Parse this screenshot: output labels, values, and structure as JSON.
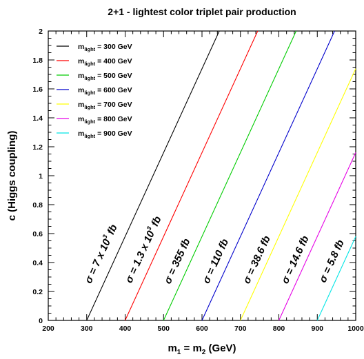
{
  "chart_data": {
    "type": "line",
    "title": "2+1 - lightest color triplet pair production",
    "xlabel": {
      "main": "m",
      "sub1": "1",
      "mid": " = m",
      "sub2": "2",
      "tail": " (GeV)"
    },
    "ylabel": "c (Higgs coupling)",
    "xlim": [
      200,
      1000
    ],
    "ylim": [
      0,
      2
    ],
    "x_major_ticks": [
      200,
      300,
      400,
      500,
      600,
      700,
      800,
      900,
      1000
    ],
    "y_major_ticks": [
      0,
      0.2,
      0.4,
      0.6,
      0.8,
      1,
      1.2,
      1.4,
      1.6,
      1.8,
      2
    ],
    "x_tick_labels": [
      "200",
      "300",
      "400",
      "500",
      "600",
      "700",
      "800",
      "900",
      "1000"
    ],
    "y_tick_labels": [
      "0",
      "0.2",
      "0.4",
      "0.6",
      "0.8",
      "1",
      "1.2",
      "1.4",
      "1.6",
      "1.8",
      "2"
    ],
    "grid": false,
    "legend_position": "top-left",
    "series": [
      {
        "legend_prefix": "m",
        "legend_sub": "light",
        "legend_suffix": " = 300 GeV",
        "color": "#000000",
        "x": [
          300,
          645
        ],
        "y": [
          0,
          2
        ],
        "annotation": {
          "pre": "σ = 7 x 10",
          "sup": "3",
          "post": " fb",
          "at": [
            345,
            0.45
          ]
        }
      },
      {
        "legend_prefix": "m",
        "legend_sub": "light",
        "legend_suffix": " = 400 GeV",
        "color": "#ff0000",
        "x": [
          400,
          745
        ],
        "y": [
          0,
          2
        ],
        "annotation": {
          "pre": "σ = 1.3 x 10",
          "sup": "3",
          "post": " fb",
          "at": [
            455,
            0.48
          ]
        }
      },
      {
        "legend_prefix": "m",
        "legend_sub": "light",
        "legend_suffix": " = 500 GeV",
        "color": "#00cc00",
        "x": [
          500,
          845
        ],
        "y": [
          0,
          2
        ],
        "annotation": {
          "pre": "σ = 355 fb",
          "sup": "",
          "post": "",
          "at": [
            543,
            0.4
          ]
        }
      },
      {
        "legend_prefix": "m",
        "legend_sub": "light",
        "legend_suffix": " = 600 GeV",
        "color": "#0000cc",
        "x": [
          600,
          945
        ],
        "y": [
          0,
          2
        ],
        "annotation": {
          "pre": "σ = 110 fb",
          "sup": "",
          "post": "",
          "at": [
            643,
            0.4
          ]
        }
      },
      {
        "legend_prefix": "m",
        "legend_sub": "light",
        "legend_suffix": " = 700 GeV",
        "color": "#ffff00",
        "x": [
          700,
          1000
        ],
        "y": [
          0,
          1.74
        ],
        "annotation": {
          "pre": "σ = 38.6 fb",
          "sup": "",
          "post": "",
          "at": [
            750,
            0.41
          ]
        }
      },
      {
        "legend_prefix": "m",
        "legend_sub": "light",
        "legend_suffix": " = 800 GeV",
        "color": "#e600e6",
        "x": [
          800,
          1000
        ],
        "y": [
          0,
          1.16
        ],
        "annotation": {
          "pre": "σ = 14.6 fb",
          "sup": "",
          "post": "",
          "at": [
            850,
            0.41
          ]
        }
      },
      {
        "legend_prefix": "m",
        "legend_sub": "light",
        "legend_suffix": " = 900 GeV",
        "color": "#00e5e5",
        "x": [
          900,
          1000
        ],
        "y": [
          0,
          0.58
        ],
        "annotation": {
          "pre": "σ = 5.8 fb",
          "sup": "",
          "post": "",
          "at": [
            945,
            0.4
          ]
        }
      }
    ]
  }
}
